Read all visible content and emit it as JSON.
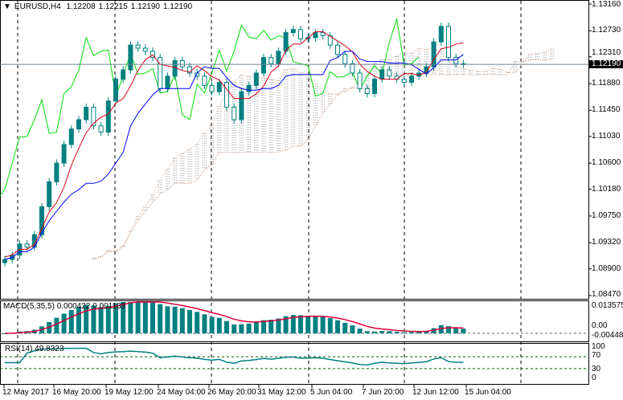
{
  "header": {
    "symbol": "EURUSD,H4",
    "open": "1.12208",
    "high": "1.12215",
    "low": "1.12190",
    "close": "1.12190"
  },
  "price_axis": [
    "1.13160",
    "1.12730",
    "1.12310",
    "1.11880",
    "1.11450",
    "1.11030",
    "1.10600",
    "1.10180",
    "1.09750",
    "1.09320",
    "1.08900",
    "1.08470"
  ],
  "current_price": "1.12190",
  "macd": {
    "label": "MACD(5,35,5)",
    "main": "0.000422",
    "signal": "0.001133",
    "axis": [
      "0.013575",
      "0.00",
      "-0.004483"
    ]
  },
  "rsi": {
    "label": "RSI(14)",
    "value": "49.8323",
    "axis": [
      "100",
      "70",
      "30",
      "0"
    ]
  },
  "time_axis": [
    "12 May 2017",
    "16 May 20:00",
    "19 May 12:00",
    "24 May 04:00",
    "26 May 20:00",
    "31 May 12:00",
    "5 Jun 04:00",
    "7 Jun 20:00",
    "12 Jun 12:00",
    "15 Jun 04:00"
  ],
  "colors": {
    "bull": "#008080",
    "bear": "#008080",
    "tenkan": "#e0001b",
    "kijun": "#0000ff",
    "chikou": "#00e000",
    "cloud": "#a0a0a0",
    "macd_hist": "#008080",
    "macd_signal": "#e0003a",
    "rsi": "#008080"
  },
  "chart_data": {
    "type": "candlestick",
    "price_range": [
      1.0847,
      1.1316
    ],
    "closes": [
      1.0905,
      1.0912,
      1.093,
      1.0925,
      1.0945,
      1.099,
      1.103,
      1.106,
      1.109,
      1.1115,
      1.113,
      1.115,
      1.112,
      1.111,
      1.116,
      1.1195,
      1.121,
      1.125,
      1.1245,
      1.124,
      1.123,
      1.118,
      1.12,
      1.1225,
      1.1215,
      1.1205,
      1.12,
      1.1185,
      1.1175,
      1.119,
      1.115,
      1.113,
      1.1175,
      1.1185,
      1.1205,
      1.123,
      1.122,
      1.124,
      1.127,
      1.1275,
      1.126,
      1.1262,
      1.127,
      1.1265,
      1.125,
      1.1235,
      1.122,
      1.1205,
      1.118,
      1.1172,
      1.1195,
      1.121,
      1.12,
      1.1195,
      1.119,
      1.12,
      1.1205,
      1.1215,
      1.1255,
      1.128,
      1.123,
      1.122,
      1.1219
    ]
  }
}
